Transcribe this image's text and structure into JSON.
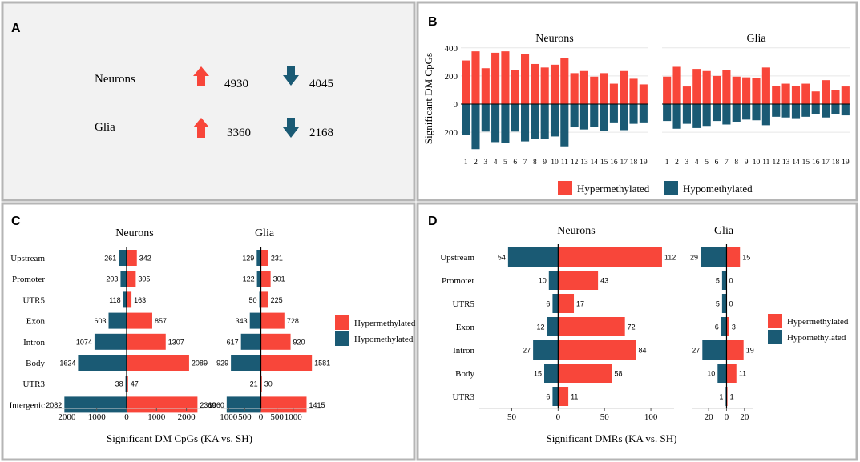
{
  "colors": {
    "hyper": "#f8463a",
    "hypo": "#1a5a74",
    "panel_border": "#b5b5b5",
    "panel_bg_a": "#f2f2f2",
    "grid": "#e7e7e7"
  },
  "icons": {
    "up": "up-arrow-icon",
    "down": "down-arrow-icon"
  },
  "panels": {
    "a": "A",
    "b": "B",
    "c": "C",
    "d": "D"
  },
  "legend": {
    "hyper": "Hypermethylated",
    "hypo": "Hypomethylated"
  },
  "summary": {
    "rows": [
      {
        "label": "Neurons",
        "hyper": "4930",
        "hypo": "4045"
      },
      {
        "label": "Glia",
        "hyper": "3360",
        "hypo": "2168"
      }
    ]
  },
  "chart_data": [
    {
      "panel": "B",
      "type": "bar",
      "ylabel": "Significant DM CpGs",
      "ylim": [
        -330,
        410
      ],
      "yticks": [
        -200,
        0,
        200,
        400
      ],
      "yticklabels": [
        "200",
        "0",
        "200",
        "400"
      ],
      "categories": [
        "1",
        "2",
        "3",
        "4",
        "5",
        "6",
        "7",
        "8",
        "9",
        "10",
        "11",
        "12",
        "13",
        "14",
        "15",
        "16",
        "17",
        "18",
        "19"
      ],
      "facets": [
        {
          "name": "Neurons",
          "series": [
            {
              "name": "Hypermethylated",
              "values": [
                310,
                375,
                255,
                365,
                375,
                240,
                355,
                285,
                260,
                280,
                325,
                220,
                235,
                195,
                220,
                145,
                235,
                180,
                140
              ]
            },
            {
              "name": "Hypomethylated",
              "values": [
                -220,
                -320,
                -195,
                -270,
                -275,
                -195,
                -265,
                -250,
                -245,
                -230,
                -300,
                -165,
                -180,
                -160,
                -190,
                -130,
                -185,
                -140,
                -130
              ]
            }
          ]
        },
        {
          "name": "Glia",
          "series": [
            {
              "name": "Hypermethylated",
              "values": [
                195,
                265,
                125,
                250,
                235,
                200,
                240,
                195,
                190,
                185,
                260,
                130,
                145,
                130,
                145,
                90,
                170,
                100,
                125
              ]
            },
            {
              "name": "Hypomethylated",
              "values": [
                -120,
                -175,
                -140,
                -170,
                -155,
                -120,
                -145,
                -125,
                -110,
                -115,
                -150,
                -90,
                -95,
                -100,
                -90,
                -70,
                -95,
                -70,
                -80
              ]
            }
          ]
        }
      ],
      "legend_position": "bottom"
    },
    {
      "panel": "C",
      "type": "bar",
      "orientation": "horizontal",
      "xlabel": "Significant DM CpGs (KA vs. SH)",
      "categories": [
        "Upstream",
        "Promoter",
        "UTR5",
        "Exon",
        "Intron",
        "Body",
        "UTR3",
        "Intergenic"
      ],
      "facets": [
        {
          "name": "Neurons",
          "xlim": [
            -2600,
            2600
          ],
          "xticks": [
            -2000,
            -1000,
            0,
            1000,
            2000
          ],
          "xticklabels": [
            "2000",
            "1000",
            "0",
            "1000",
            "2000"
          ],
          "series": [
            {
              "name": "Hypomethylated",
              "values": [
                261,
                203,
                118,
                603,
                1074,
                1624,
                38,
                2082
              ]
            },
            {
              "name": "Hypermethylated",
              "values": [
                342,
                305,
                163,
                857,
                1307,
                2089,
                47,
                2369
              ]
            }
          ]
        },
        {
          "name": "Glia",
          "xlim": [
            -1230,
            1850
          ],
          "xticks": [
            -1000,
            -500,
            0,
            500,
            1000
          ],
          "xticklabels": [
            "1000",
            "500",
            "0",
            "500",
            "1000"
          ],
          "series": [
            {
              "name": "Hypomethylated",
              "values": [
                129,
                122,
                50,
                343,
                617,
                929,
                21,
                1060
              ]
            },
            {
              "name": "Hypermethylated",
              "values": [
                231,
                301,
                225,
                728,
                920,
                1581,
                30,
                1415
              ]
            }
          ]
        }
      ],
      "legend_position": "right"
    },
    {
      "panel": "D",
      "type": "bar",
      "orientation": "horizontal",
      "xlabel": "Significant DMRs (KA vs. SH)",
      "categories": [
        "Upstream",
        "Promoter",
        "UTR5",
        "Exon",
        "Intron",
        "Body",
        "UTR3"
      ],
      "facets": [
        {
          "name": "Neurons",
          "xlim": [
            -85,
            125
          ],
          "xticks": [
            -50,
            0,
            50,
            100
          ],
          "xticklabels": [
            "50",
            "0",
            "50",
            "100"
          ],
          "series": [
            {
              "name": "Hypomethylated",
              "values": [
                54,
                10,
                6,
                12,
                27,
                15,
                6
              ]
            },
            {
              "name": "Hypermethylated",
              "values": [
                112,
                43,
                17,
                72,
                84,
                58,
                11
              ]
            }
          ]
        },
        {
          "name": "Glia",
          "xlim": [
            -38,
            30
          ],
          "xticks": [
            -20,
            0,
            20
          ],
          "xticklabels": [
            "20",
            "0",
            "20"
          ],
          "series": [
            {
              "name": "Hypomethylated",
              "values": [
                29,
                5,
                5,
                6,
                27,
                10,
                1
              ]
            },
            {
              "name": "Hypermethylated",
              "values": [
                15,
                0,
                0,
                3,
                19,
                11,
                1
              ]
            }
          ]
        }
      ],
      "legend_position": "right"
    }
  ]
}
